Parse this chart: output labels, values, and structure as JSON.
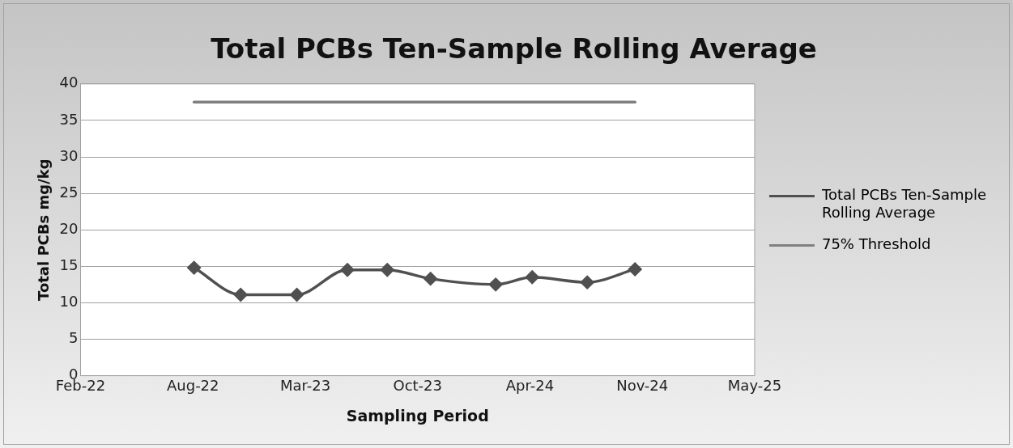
{
  "chart_data": {
    "type": "line",
    "title": "Total PCBs Ten-Sample Rolling Average",
    "xlabel": "Sampling Period",
    "ylabel": "Total PCBs mg/kg",
    "xlim": [
      "2022-02-10",
      "2025-05-25"
    ],
    "xticks": [
      {
        "value": "2022-02-10",
        "label": "Feb-22"
      },
      {
        "value": "2022-08-29",
        "label": "Aug-22"
      },
      {
        "value": "2023-03-17",
        "label": "Mar-23"
      },
      {
        "value": "2023-10-03",
        "label": "Oct-23"
      },
      {
        "value": "2024-04-20",
        "label": "Apr-24"
      },
      {
        "value": "2024-11-06",
        "label": "Nov-24"
      },
      {
        "value": "2025-05-25",
        "label": "May-25"
      }
    ],
    "ylim": [
      0,
      40
    ],
    "yticks": [
      0,
      5,
      10,
      15,
      20,
      25,
      30,
      35,
      40
    ],
    "grid": "y",
    "legend": "right",
    "series": [
      {
        "name": "Total PCBs Ten-Sample Rolling Average",
        "color": "#505050",
        "marker": "diamond",
        "x": [
          "2022-08-31",
          "2022-11-22",
          "2023-03-02",
          "2023-05-31",
          "2023-08-10",
          "2023-10-26",
          "2024-02-19",
          "2024-04-24",
          "2024-07-31",
          "2024-10-24"
        ],
        "values": [
          14.8,
          11.1,
          11.1,
          14.5,
          14.5,
          13.3,
          12.5,
          13.5,
          12.8,
          14.6
        ]
      },
      {
        "name": "75% Threshold",
        "color": "#808080",
        "marker": "none",
        "x": [
          "2022-08-31",
          "2024-10-24"
        ],
        "values": [
          37.5,
          37.5
        ]
      }
    ]
  }
}
